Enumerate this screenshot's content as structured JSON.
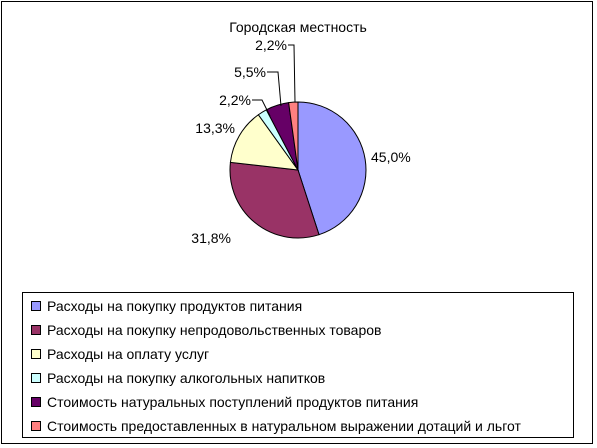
{
  "chart_data": {
    "type": "pie",
    "title": "Городская местность",
    "slices": [
      {
        "label": "Расходы на покупку продуктов питания",
        "value": 45.0,
        "value_label": "45,0%",
        "color": "#9999FF"
      },
      {
        "label": "Расходы на покупку непродовольственных товаров",
        "value": 31.8,
        "value_label": "31,8%",
        "color": "#993366"
      },
      {
        "label": "Расходы на оплату услуг",
        "value": 13.3,
        "value_label": "13,3%",
        "color": "#FFFFCC"
      },
      {
        "label": "Расходы на покупку алкогольных напитков",
        "value": 2.2,
        "value_label": "2,2%",
        "color": "#CCFFFF"
      },
      {
        "label": "Стоимость натуральных поступлений продуктов питания",
        "value": 5.5,
        "value_label": "5,5%",
        "color": "#660066"
      },
      {
        "label": "Стоимость предоставленных в натуральном выражении дотаций и льгот",
        "value": 2.2,
        "value_label": "2,2%",
        "color": "#FF8080"
      }
    ],
    "legend_position": "bottom"
  }
}
